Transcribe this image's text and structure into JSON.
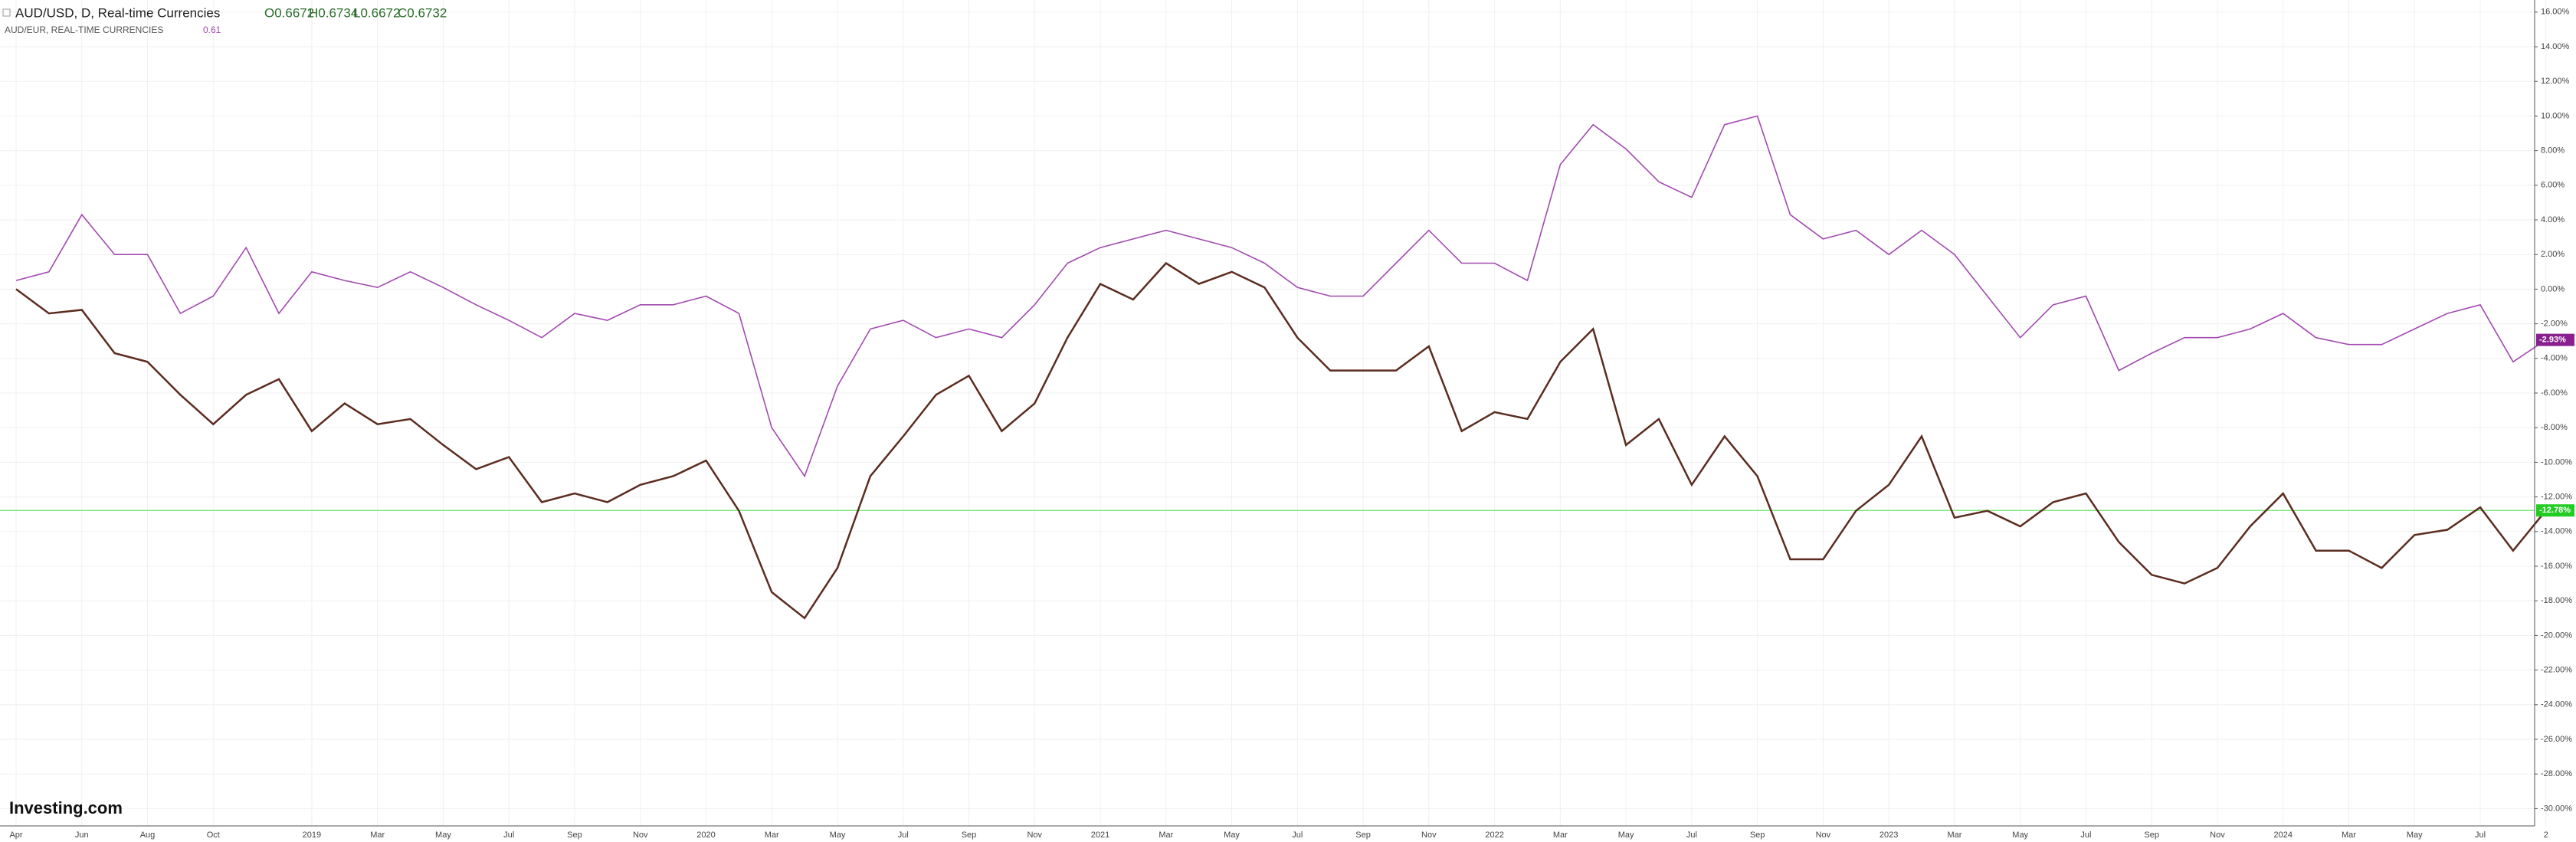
{
  "chart_data": {
    "type": "line",
    "title": "AUD/USD, D, Real-time Currencies",
    "ohlc": [
      "O0.6672",
      "H0.6734",
      "L0.6672",
      "C0.6732"
    ],
    "logo": "Investing.com",
    "categories": [
      "Apr",
      null,
      "Jun",
      null,
      "Aug",
      null,
      "Oct",
      null,
      null,
      "2019",
      null,
      "Mar",
      null,
      "May",
      null,
      "Jul",
      null,
      "Sep",
      null,
      "Nov",
      null,
      "2020",
      null,
      "Mar",
      null,
      "May",
      null,
      "Jul",
      null,
      "Sep",
      null,
      "Nov",
      null,
      "2021",
      null,
      "Mar",
      null,
      "May",
      null,
      "Jul",
      null,
      "Sep",
      null,
      "Nov",
      null,
      "2022",
      null,
      "Mar",
      null,
      "May",
      null,
      "Jul",
      null,
      "Sep",
      null,
      "Nov",
      null,
      "2023",
      null,
      "Mar",
      null,
      "May",
      null,
      "Jul",
      null,
      "Sep",
      null,
      "Nov",
      null,
      "2024",
      null,
      "Mar",
      null,
      "May",
      null,
      "Jul",
      null,
      "2"
    ],
    "series": [
      {
        "name": "AUD/USD, D, Real-time Currencies",
        "color": "#5b2c1f",
        "values": [
          0.0,
          -1.4,
          -1.2,
          -3.7,
          -4.2,
          -6.1,
          -7.8,
          -6.1,
          -5.2,
          -8.2,
          -6.6,
          -7.8,
          -7.5,
          -9.0,
          -10.4,
          -9.7,
          -12.3,
          -11.8,
          -12.3,
          -11.3,
          -10.8,
          -9.9,
          -12.8,
          -17.5,
          -19.0,
          -16.1,
          -10.8,
          -8.5,
          -6.1,
          -5.0,
          -8.2,
          -6.6,
          -2.8,
          0.3,
          -0.6,
          1.5,
          0.3,
          1.0,
          0.1,
          -2.8,
          -4.7,
          -4.7,
          -4.7,
          -3.3,
          -8.2,
          -7.1,
          -7.5,
          -4.2,
          -2.3,
          -9.0,
          -7.5,
          -11.3,
          -8.5,
          -10.8,
          -15.6,
          -15.6,
          -12.8,
          -11.3,
          -8.5,
          -13.2,
          -12.8,
          -13.7,
          -12.3,
          -11.8,
          -14.6,
          -16.5,
          -17.0,
          -16.1,
          -13.7,
          -11.8,
          -15.1,
          -15.1,
          -16.1,
          -14.2,
          -13.9,
          -12.6,
          -15.1,
          -12.78
        ],
        "last_label": "-12.78%",
        "label_color": "#22cc22",
        "price_line_color": "#7fe87f"
      },
      {
        "name": "AUD/EUR, REAL-TIME CURRENCIES",
        "legend_value": "0.61",
        "color": "#a24ab0",
        "values": [
          0.5,
          1.0,
          4.3,
          2.0,
          2.0,
          -1.4,
          -0.4,
          2.4,
          -1.4,
          1.0,
          0.5,
          0.1,
          1.0,
          0.1,
          -0.9,
          -1.8,
          -2.8,
          -1.4,
          -1.8,
          -0.9,
          -0.9,
          -0.4,
          -1.4,
          -8.0,
          -10.8,
          -5.6,
          -2.3,
          -1.8,
          -2.8,
          -2.3,
          -2.8,
          -0.9,
          1.5,
          2.4,
          2.9,
          3.4,
          2.9,
          2.4,
          1.5,
          0.1,
          -0.4,
          -0.4,
          1.5,
          3.4,
          1.5,
          1.5,
          0.5,
          7.2,
          9.5,
          8.1,
          6.2,
          5.3,
          9.5,
          10.0,
          4.3,
          2.9,
          3.4,
          2.0,
          3.4,
          2.0,
          -0.4,
          -2.8,
          -0.9,
          -0.4,
          -4.7,
          -3.7,
          -2.8,
          -2.8,
          -2.3,
          -1.4,
          -2.8,
          -3.2,
          -3.2,
          -2.3,
          -1.4,
          -0.9,
          -4.2,
          -2.93
        ],
        "last_label": "-2.93%",
        "label_color": "#8a1f8f"
      }
    ],
    "ylim": [
      -31,
      16.7
    ],
    "yticks": [
      {
        "value": 16,
        "label": "16.00%"
      },
      {
        "value": 14,
        "label": "14.00%"
      },
      {
        "value": 12,
        "label": "12.00%"
      },
      {
        "value": 10,
        "label": "10.00%"
      },
      {
        "value": 8,
        "label": "8.00%"
      },
      {
        "value": 6,
        "label": "6.00%"
      },
      {
        "value": 4,
        "label": "4.00%"
      },
      {
        "value": 2,
        "label": "2.00%"
      },
      {
        "value": 0,
        "label": "0.00%"
      },
      {
        "value": -2,
        "label": "-2.00%"
      },
      {
        "value": -4,
        "label": "-4.00%"
      },
      {
        "value": -6,
        "label": "-6.00%"
      },
      {
        "value": -8,
        "label": "-8.00%"
      },
      {
        "value": -10,
        "label": "-10.00%"
      },
      {
        "value": -12,
        "label": "-12.00%"
      },
      {
        "value": -14,
        "label": "-14.00%"
      },
      {
        "value": -16,
        "label": "-16.00%"
      },
      {
        "value": -18,
        "label": "-18.00%"
      },
      {
        "value": -20,
        "label": "-20.00%"
      },
      {
        "value": -22,
        "label": "-22.00%"
      },
      {
        "value": -24,
        "label": "-24.00%"
      },
      {
        "value": -26,
        "label": "-26.00%"
      },
      {
        "value": -28,
        "label": "-28.00%"
      },
      {
        "value": -30,
        "label": "-30.00%"
      }
    ],
    "grid": true
  }
}
